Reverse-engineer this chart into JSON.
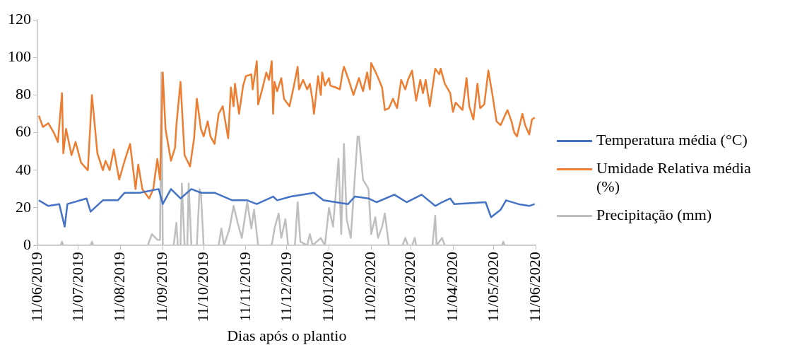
{
  "chart_data": {
    "type": "line",
    "xlabel": "Dias após o plantio",
    "xlim": [
      "2019-06-11",
      "2020-06-11"
    ],
    "xticks": [
      {
        "value": "2019-06-11",
        "label": "11/06/2019"
      },
      {
        "value": "2019-07-11",
        "label": "11/07/2019"
      },
      {
        "value": "2019-08-11",
        "label": "11/08/2019"
      },
      {
        "value": "2019-09-11",
        "label": "11/09/2019"
      },
      {
        "value": "2019-10-11",
        "label": "11/10/2019"
      },
      {
        "value": "2019-11-11",
        "label": "11/11/2019"
      },
      {
        "value": "2019-12-11",
        "label": "11/12/2019"
      },
      {
        "value": "2020-01-11",
        "label": "11/01/2020"
      },
      {
        "value": "2020-02-11",
        "label": "11/02/2020"
      },
      {
        "value": "2020-03-11",
        "label": "11/03/2020"
      },
      {
        "value": "2020-04-11",
        "label": "11/04/2020"
      },
      {
        "value": "2020-05-11",
        "label": "11/05/2020"
      },
      {
        "value": "2020-06-11",
        "label": "11/06/2020"
      }
    ],
    "ylim": [
      0,
      120
    ],
    "yticks": [
      0,
      20,
      40,
      60,
      80,
      100,
      120
    ],
    "grid": false,
    "legend": "right",
    "marker": "none",
    "line_style": "solid",
    "series": [
      {
        "name": "Temperatura média (°C)",
        "color": "#4472c4",
        "x": [
          "2019-06-12",
          "2019-06-19",
          "2019-06-27",
          "2019-07-01",
          "2019-07-03",
          "2019-07-17",
          "2019-07-20",
          "2019-07-29",
          "2019-08-09",
          "2019-08-14",
          "2019-08-25",
          "2019-09-08",
          "2019-09-11",
          "2019-09-17",
          "2019-09-24",
          "2019-10-02",
          "2019-10-09",
          "2019-10-19",
          "2019-11-01",
          "2019-11-12",
          "2019-11-19",
          "2019-12-01",
          "2019-12-04",
          "2019-12-14",
          "2019-12-31",
          "2020-01-07",
          "2020-01-25",
          "2020-01-30",
          "2020-02-09",
          "2020-02-15",
          "2020-02-28",
          "2020-03-08",
          "2020-03-19",
          "2020-03-29",
          "2020-04-03",
          "2020-04-09",
          "2020-04-12",
          "2020-05-05",
          "2020-05-09",
          "2020-05-16",
          "2020-05-20",
          "2020-05-29",
          "2020-06-06",
          "2020-06-10"
        ],
        "values": [
          24,
          21,
          22,
          10,
          22,
          25,
          18,
          24,
          24,
          28,
          28,
          30,
          22,
          30,
          25,
          30,
          28,
          28,
          24,
          24,
          22,
          26,
          24,
          26,
          28,
          24,
          22,
          26,
          25,
          23,
          27,
          23,
          27,
          21,
          23,
          25,
          22,
          23,
          15,
          19,
          24,
          22,
          21,
          22
        ]
      },
      {
        "name": "Umidade Relativa média (%)",
        "color": "#ed7d31",
        "x": [
          "2019-06-12",
          "2019-06-15",
          "2019-06-19",
          "2019-06-23",
          "2019-06-26",
          "2019-06-29",
          "2019-06-30",
          "2019-07-02",
          "2019-07-06",
          "2019-07-09",
          "2019-07-13",
          "2019-07-18",
          "2019-07-21",
          "2019-07-25",
          "2019-07-29",
          "2019-07-31",
          "2019-08-03",
          "2019-08-06",
          "2019-08-10",
          "2019-08-14",
          "2019-08-18",
          "2019-08-22",
          "2019-08-24",
          "2019-08-27",
          "2019-09-01",
          "2019-09-04",
          "2019-09-07",
          "2019-09-09",
          "2019-09-11",
          "2019-09-13",
          "2019-09-17",
          "2019-09-20",
          "2019-09-21",
          "2019-09-24",
          "2019-09-27",
          "2019-10-01",
          "2019-10-04",
          "2019-10-06",
          "2019-10-09",
          "2019-10-11",
          "2019-10-14",
          "2019-10-16",
          "2019-10-19",
          "2019-10-22",
          "2019-10-25",
          "2019-10-29",
          "2019-10-31",
          "2019-11-02",
          "2019-11-03",
          "2019-11-06",
          "2019-11-09",
          "2019-11-11",
          "2019-11-15",
          "2019-11-16",
          "2019-11-19",
          "2019-11-20",
          "2019-11-23",
          "2019-11-26",
          "2019-11-28",
          "2019-11-30",
          "2019-12-01",
          "2019-12-02",
          "2019-12-04",
          "2019-12-07",
          "2019-12-09",
          "2019-12-13",
          "2019-12-16",
          "2019-12-19",
          "2019-12-20",
          "2019-12-23",
          "2019-12-26",
          "2019-12-28",
          "2019-12-30",
          "2019-12-31",
          "2020-01-03",
          "2020-01-05",
          "2020-01-06",
          "2020-01-08",
          "2020-01-11",
          "2020-01-12",
          "2020-01-16",
          "2020-01-19",
          "2020-01-21",
          "2020-01-22",
          "2020-01-25",
          "2020-01-29",
          "2020-02-02",
          "2020-02-05",
          "2020-02-08",
          "2020-02-10",
          "2020-02-11",
          "2020-02-15",
          "2020-02-19",
          "2020-02-21",
          "2020-02-24",
          "2020-02-27",
          "2020-03-01",
          "2020-03-04",
          "2020-03-07",
          "2020-03-09",
          "2020-03-12",
          "2020-03-15",
          "2020-03-18",
          "2020-03-20",
          "2020-03-22",
          "2020-03-25",
          "2020-03-29",
          "2020-04-01",
          "2020-04-02",
          "2020-04-05",
          "2020-04-09",
          "2020-04-11",
          "2020-04-13",
          "2020-04-18",
          "2020-04-21",
          "2020-04-23",
          "2020-04-26",
          "2020-04-29",
          "2020-05-01",
          "2020-05-04",
          "2020-05-07",
          "2020-05-10",
          "2020-05-13",
          "2020-05-16",
          "2020-05-21",
          "2020-05-24",
          "2020-05-26",
          "2020-05-28",
          "2020-06-01",
          "2020-06-03",
          "2020-06-06",
          "2020-06-08",
          "2020-06-10"
        ],
        "values": [
          69,
          63,
          65,
          60,
          55,
          81,
          49,
          62,
          48,
          55,
          44,
          40,
          80,
          49,
          40,
          45,
          40,
          51,
          35,
          45,
          54,
          30,
          43,
          30,
          25,
          30,
          46,
          35,
          92,
          62,
          45,
          52,
          64,
          87,
          48,
          42,
          57,
          78,
          62,
          58,
          66,
          58,
          54,
          70,
          74,
          57,
          84,
          74,
          86,
          70,
          85,
          90,
          91,
          83,
          98,
          75,
          83,
          92,
          88,
          98,
          70,
          87,
          82,
          89,
          78,
          74,
          84,
          95,
          83,
          88,
          83,
          86,
          77,
          70,
          90,
          80,
          92,
          85,
          89,
          85,
          84,
          83,
          92,
          95,
          89,
          80,
          89,
          82,
          92,
          83,
          97,
          91,
          84,
          72,
          73,
          78,
          73,
          88,
          83,
          88,
          93,
          77,
          88,
          81,
          88,
          74,
          94,
          91,
          94,
          86,
          81,
          71,
          76,
          72,
          89,
          74,
          67,
          86,
          73,
          75,
          93,
          80,
          66,
          64,
          72,
          66,
          60,
          58,
          70,
          64,
          59,
          67,
          68
        ]
      },
      {
        "name": "Precipitação (mm)",
        "color": "#bfbfbf",
        "x": [
          "2019-06-11",
          "2019-06-28",
          "2019-06-29",
          "2019-06-30",
          "2019-07-20",
          "2019-07-21",
          "2019-07-22",
          "2019-08-31",
          "2019-09-03",
          "2019-09-07",
          "2019-09-09",
          "2019-09-10",
          "2019-09-11",
          "2019-09-19",
          "2019-09-21",
          "2019-09-22",
          "2019-09-24",
          "2019-09-25",
          "2019-09-27",
          "2019-09-29",
          "2019-09-30",
          "2019-10-02",
          "2019-10-06",
          "2019-10-08",
          "2019-10-09",
          "2019-10-11",
          "2019-10-22",
          "2019-10-24",
          "2019-10-26",
          "2019-10-30",
          "2019-11-02",
          "2019-11-05",
          "2019-11-08",
          "2019-11-12",
          "2019-11-15",
          "2019-11-17",
          "2019-11-20",
          "2019-11-30",
          "2019-12-02",
          "2019-12-05",
          "2019-12-07",
          "2019-12-10",
          "2019-12-12",
          "2019-12-17",
          "2019-12-19",
          "2019-12-21",
          "2019-12-26",
          "2019-12-28",
          "2019-12-30",
          "2020-01-05",
          "2020-01-08",
          "2020-01-11",
          "2020-01-14",
          "2020-01-18",
          "2020-01-20",
          "2020-01-22",
          "2020-01-24",
          "2020-01-27",
          "2020-02-01",
          "2020-02-02",
          "2020-02-05",
          "2020-02-09",
          "2020-02-11",
          "2020-02-14",
          "2020-02-16",
          "2020-02-19",
          "2020-02-21",
          "2020-02-24",
          "2020-03-05",
          "2020-03-07",
          "2020-03-09",
          "2020-03-12",
          "2020-03-14",
          "2020-03-15",
          "2020-03-27",
          "2020-03-29",
          "2020-03-30",
          "2020-04-03",
          "2020-04-05",
          "2020-05-17",
          "2020-05-18",
          "2020-05-19",
          "2020-06-11"
        ],
        "values": [
          0,
          0,
          2,
          0,
          0,
          2,
          0,
          0,
          6,
          3,
          3,
          92,
          0,
          0,
          12,
          0,
          0,
          33,
          0,
          0,
          33,
          0,
          0,
          30,
          28,
          0,
          0,
          9,
          0,
          9,
          21,
          12,
          4,
          23,
          9,
          19,
          0,
          0,
          9,
          17,
          4,
          14,
          0,
          0,
          23,
          2,
          0,
          6,
          0,
          4,
          0,
          20,
          10,
          46,
          6,
          54,
          14,
          4,
          58,
          58,
          35,
          30,
          6,
          15,
          4,
          10,
          17,
          0,
          0,
          4,
          0,
          0,
          4,
          0,
          0,
          16,
          0,
          4,
          0,
          0,
          2,
          0,
          0
        ]
      }
    ]
  }
}
